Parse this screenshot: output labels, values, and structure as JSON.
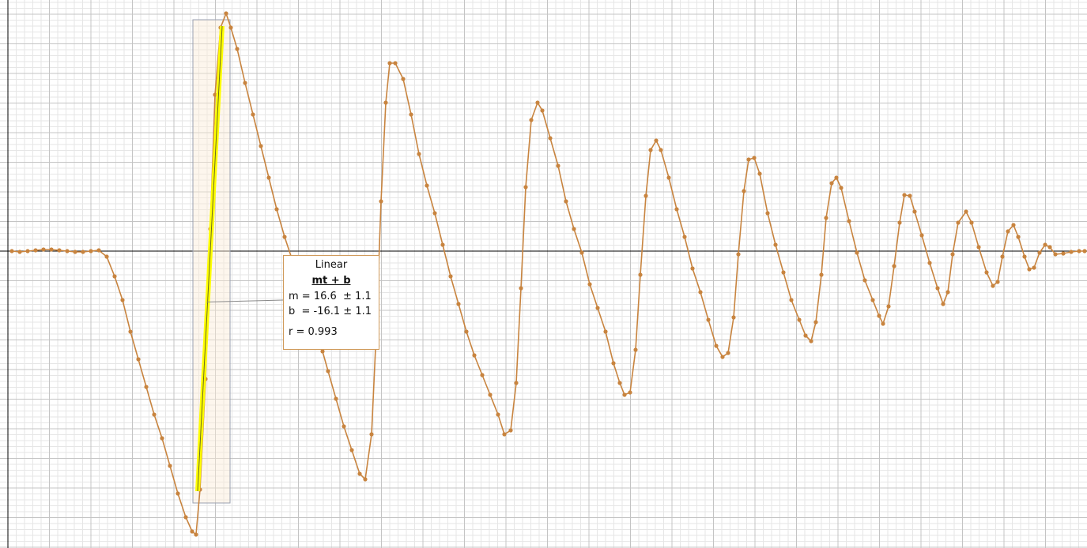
{
  "chart_data": {
    "type": "line",
    "xlim": [
      0,
      1375
    ],
    "ylim": [
      -376,
      318
    ],
    "xticks": [
      10,
      62.5,
      115,
      167.5,
      220,
      272.5,
      325,
      377.5,
      430,
      482.5,
      535,
      587.5,
      640,
      692.5,
      745,
      797.5,
      850,
      902.5,
      955,
      1007.5,
      1060,
      1112.5,
      1165,
      1217.5,
      1270,
      1322.5
    ],
    "yticks": [
      -375,
      -337.5,
      -300,
      -262.5,
      -225,
      -187.5,
      -150,
      -112.5,
      -75,
      -37.5,
      0,
      37.5,
      75,
      112.5,
      150,
      187.5,
      225,
      262.5,
      300
    ],
    "grid": true,
    "series": [
      {
        "color": "#c8843f",
        "x": [
          15,
          25,
          35,
          45,
          55,
          65,
          75,
          85,
          95,
          105,
          115,
          125,
          135,
          145,
          155,
          165,
          175,
          185,
          195,
          205,
          215,
          225,
          235,
          243,
          248,
          253,
          260,
          266,
          272,
          279,
          286,
          292,
          300,
          310,
          320,
          330,
          340,
          350,
          360,
          370,
          380,
          390,
          400,
          408,
          415,
          425,
          435,
          445,
          455,
          462,
          470,
          476,
          482,
          488,
          493,
          500,
          510,
          520,
          530,
          540,
          550,
          560,
          570,
          580,
          590,
          600,
          610,
          620,
          630,
          638,
          646,
          653,
          659,
          665,
          672,
          680,
          686,
          696,
          706,
          716,
          726,
          736,
          746,
          756,
          766,
          776,
          784,
          790,
          797,
          804,
          810,
          817,
          823,
          830,
          836,
          846,
          856,
          866,
          876,
          886,
          896,
          906,
          914,
          921,
          928,
          934,
          941,
          947,
          954,
          961,
          971,
          981,
          991,
          1001,
          1011,
          1019,
          1026,
          1032,
          1039,
          1045,
          1052,
          1058,
          1064,
          1074,
          1084,
          1094,
          1104,
          1112,
          1117,
          1124,
          1131,
          1138,
          1144,
          1151,
          1157,
          1166,
          1176,
          1186,
          1193,
          1199,
          1205,
          1212,
          1222,
          1229,
          1238,
          1248,
          1256,
          1262,
          1268,
          1275,
          1282,
          1288,
          1296,
          1302,
          1308,
          1315,
          1322,
          1328,
          1335,
          1345,
          1355,
          1365,
          1372
        ],
        "values": [
          0,
          -1,
          0,
          1,
          2,
          2,
          1,
          0,
          -1,
          -1,
          0,
          1,
          -7,
          -32,
          -62,
          -102,
          -137,
          -172,
          -207,
          -237,
          -272,
          -307,
          -337,
          -355,
          -359,
          -302,
          -162,
          28,
          198,
          283,
          301,
          283,
          256,
          213,
          173,
          133,
          93,
          53,
          18,
          -12,
          -42,
          -72,
          -102,
          -127,
          -152,
          -187,
          -222,
          -252,
          -282,
          -289,
          -232,
          -102,
          63,
          188,
          238,
          238,
          218,
          173,
          123,
          83,
          48,
          8,
          -32,
          -67,
          -102,
          -132,
          -157,
          -182,
          -207,
          -232,
          -227,
          -167,
          -47,
          81,
          166,
          188,
          178,
          143,
          108,
          63,
          28,
          -2,
          -42,
          -72,
          -102,
          -142,
          -167,
          -182,
          -179,
          -125,
          -30,
          70,
          128,
          140,
          128,
          93,
          53,
          18,
          -22,
          -52,
          -87,
          -120,
          -134,
          -129,
          -84,
          -4,
          76,
          116,
          118,
          98,
          48,
          8,
          -27,
          -62,
          -87,
          -107,
          -114,
          -90,
          -30,
          42,
          86,
          93,
          80,
          38,
          -2,
          -37,
          -62,
          -82,
          -92,
          -70,
          -19,
          36,
          71,
          70,
          50,
          20,
          -15,
          -47,
          -67,
          -52,
          -4,
          36,
          50,
          36,
          5,
          -27,
          -44,
          -39,
          -7,
          25,
          33,
          18,
          -7,
          -23,
          -21,
          -2,
          8,
          5,
          -4,
          -3,
          -1,
          0,
          0
        ]
      }
    ],
    "selection": {
      "x": [
        244,
        291
      ]
    },
    "fit": {
      "color": "#ffff00",
      "x": [
        250,
        281
      ],
      "y": [
        -304,
        285
      ],
      "title": "Linear",
      "equation": "mt + b",
      "m": "m = 16.6  ± 1.1",
      "b": "b  = -16.1 ± 1.1",
      "r": "r = 0.993"
    }
  }
}
